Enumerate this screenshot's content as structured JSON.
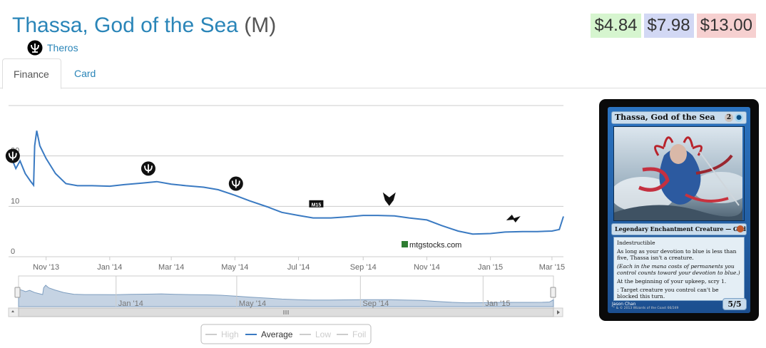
{
  "card": {
    "name": "Thassa, God of the Sea",
    "rarity": "(M)",
    "set_name": "Theros",
    "set_icon": "theros-set-icon"
  },
  "prices": {
    "low": "$4.84",
    "average": "$7.98",
    "high": "$13.00"
  },
  "colors": {
    "link": "#2a85b8",
    "line": "#3a7ac2",
    "low_bg": "#d6f5cf",
    "avg_bg": "#d2d8f4",
    "high_bg": "#f6d0d0"
  },
  "tabs": [
    {
      "label": "Finance",
      "active": true
    },
    {
      "label": "Card",
      "active": false
    }
  ],
  "chart_data": {
    "type": "line",
    "x_ticks": [
      "Nov '13",
      "Jan '14",
      "Mar '14",
      "May '14",
      "Jul '14",
      "Sep '14",
      "Nov '14",
      "Jan '15",
      "Mar '15"
    ],
    "y_ticks": [
      "0",
      "10",
      "20"
    ],
    "ylim": [
      0,
      30
    ],
    "grid": true,
    "watermark": "mtgstocks.com",
    "series": [
      {
        "name": "High",
        "visible": false
      },
      {
        "name": "Average",
        "visible": true,
        "x": [
          "2013-09-26",
          "2013-10-01",
          "2013-10-03",
          "2013-10-07",
          "2013-10-12",
          "2013-10-17",
          "2013-10-20",
          "2013-10-21",
          "2013-10-23",
          "2013-10-26",
          "2013-11-01",
          "2013-11-10",
          "2013-11-20",
          "2013-12-01",
          "2013-12-15",
          "2014-01-01",
          "2014-01-15",
          "2014-02-01",
          "2014-02-15",
          "2014-03-01",
          "2014-03-15",
          "2014-04-01",
          "2014-04-15",
          "2014-05-01",
          "2014-05-15",
          "2014-06-01",
          "2014-06-15",
          "2014-07-01",
          "2014-07-15",
          "2014-08-01",
          "2014-08-15",
          "2014-09-01",
          "2014-09-15",
          "2014-10-01",
          "2014-10-15",
          "2014-11-01",
          "2014-11-15",
          "2014-12-01",
          "2014-12-15",
          "2015-01-01",
          "2015-01-15",
          "2015-02-01",
          "2015-02-15",
          "2015-03-01",
          "2015-03-08",
          "2015-03-12"
        ],
        "y": [
          20.5,
          18.5,
          17.5,
          19,
          16.5,
          15,
          14.2,
          22,
          25,
          22,
          19.5,
          16.5,
          14.5,
          14.1,
          14.1,
          14.0,
          14.3,
          14.6,
          14.9,
          14.4,
          14.1,
          13.8,
          13.3,
          12.2,
          11.1,
          9.9,
          8.8,
          8.2,
          7.7,
          7.7,
          7.9,
          8.2,
          8.2,
          8.1,
          7.7,
          7.3,
          6.2,
          5.1,
          4.5,
          4.6,
          4.9,
          5.0,
          5.0,
          5.1,
          5.4,
          8.0
        ]
      },
      {
        "name": "Low",
        "visible": false
      },
      {
        "name": "Foil",
        "visible": false
      }
    ],
    "set_markers": [
      {
        "icon": "theros-set-icon",
        "x": "2013-09-30",
        "y": 20
      },
      {
        "icon": "born-of-the-gods-set-icon",
        "x": "2014-02-07",
        "y": 17.5
      },
      {
        "icon": "journey-into-nyx-set-icon",
        "x": "2014-05-02",
        "y": 14.5
      },
      {
        "icon": "m15-set-icon",
        "x": "2014-07-18",
        "y": 10.5
      },
      {
        "icon": "khans-of-tarkir-set-icon",
        "x": "2014-09-26",
        "y": 11.5
      },
      {
        "icon": "fate-reforged-set-icon",
        "x": "2015-01-23",
        "y": 7.5
      }
    ],
    "navigator": {
      "x_ticks": [
        "Jan '14",
        "May '14",
        "Sep '14",
        "Jan '15"
      ]
    },
    "legend_placement": "bottom-center"
  },
  "card_image": {
    "title": "Thassa, God of the Sea",
    "cost_generic": "2",
    "type_line": "Legendary Enchantment Creature — God",
    "rules": [
      "Indestructible",
      "As long as your devotion to blue is less than five, Thassa isn't a creature.",
      "(Each  in the mana costs of permanents you control counts toward your devotion to blue.)",
      "At the beginning of your upkeep, scry 1.",
      ": Target creature you control can't be blocked this turn."
    ],
    "artist": "Jason Chan",
    "copyright": "™ & © 2013 Wizards of the Coast 66/249",
    "pt": "5/5"
  }
}
